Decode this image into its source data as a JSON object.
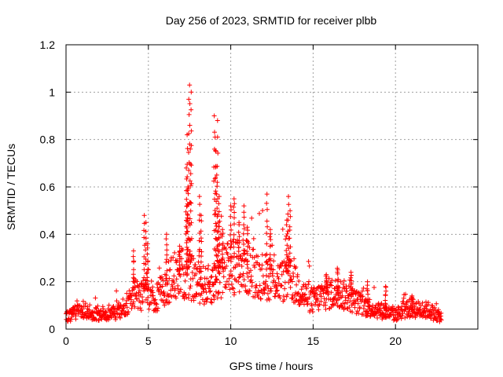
{
  "chart_data": {
    "type": "scatter",
    "title": "Day 256 of 2023, SRMTID for receiver plbb",
    "xlabel": "GPS time / hours",
    "ylabel": "SRMTID / TECUs",
    "xlim": [
      0,
      25
    ],
    "ylim": [
      0,
      1.2
    ],
    "grid": true,
    "marker": "+",
    "marker_color": "#ff0000",
    "x_ticks": [
      0,
      5,
      10,
      15,
      20
    ],
    "x_tick_labels": [
      "0",
      "5",
      "10",
      "15",
      "20"
    ],
    "y_ticks": [
      0,
      0.2,
      0.4,
      0.6,
      0.8,
      1.0,
      1.2
    ],
    "y_tick_labels": [
      "0",
      "0.2",
      "0.4",
      "0.6",
      "0.8",
      "1",
      "1.2"
    ],
    "series": [
      {
        "name": "SRMTID",
        "profile": [
          [
            0.0,
            0.05
          ],
          [
            0.5,
            0.07
          ],
          [
            1.0,
            0.08
          ],
          [
            1.5,
            0.07
          ],
          [
            2.0,
            0.06
          ],
          [
            2.5,
            0.06
          ],
          [
            3.0,
            0.07
          ],
          [
            3.5,
            0.09
          ],
          [
            3.9,
            0.12
          ],
          [
            4.2,
            0.16
          ],
          [
            4.6,
            0.14
          ],
          [
            5.0,
            0.15
          ],
          [
            5.5,
            0.13
          ],
          [
            6.0,
            0.18
          ],
          [
            6.5,
            0.22
          ],
          [
            7.0,
            0.24
          ],
          [
            7.5,
            0.22
          ],
          [
            8.0,
            0.2
          ],
          [
            8.5,
            0.18
          ],
          [
            9.0,
            0.2
          ],
          [
            9.5,
            0.24
          ],
          [
            10.0,
            0.26
          ],
          [
            10.5,
            0.27
          ],
          [
            11.0,
            0.26
          ],
          [
            11.5,
            0.24
          ],
          [
            12.0,
            0.22
          ],
          [
            12.5,
            0.22
          ],
          [
            13.0,
            0.2
          ],
          [
            13.5,
            0.21
          ],
          [
            14.0,
            0.18
          ],
          [
            14.5,
            0.14
          ],
          [
            15.0,
            0.12
          ],
          [
            15.5,
            0.14
          ],
          [
            16.0,
            0.15
          ],
          [
            16.5,
            0.15
          ],
          [
            17.0,
            0.14
          ],
          [
            17.5,
            0.12
          ],
          [
            18.0,
            0.1
          ],
          [
            18.5,
            0.09
          ],
          [
            19.0,
            0.08
          ],
          [
            19.5,
            0.07
          ],
          [
            20.0,
            0.06
          ],
          [
            20.5,
            0.08
          ],
          [
            21.0,
            0.09
          ],
          [
            21.5,
            0.08
          ],
          [
            22.0,
            0.08
          ],
          [
            22.5,
            0.06
          ],
          [
            22.8,
            0.05
          ]
        ],
        "spikes": [
          {
            "x": 4.1,
            "y": 0.33
          },
          {
            "x": 4.75,
            "y": 0.48
          },
          {
            "x": 4.85,
            "y": 0.45
          },
          {
            "x": 4.95,
            "y": 0.36
          },
          {
            "x": 6.1,
            "y": 0.4
          },
          {
            "x": 6.9,
            "y": 0.35
          },
          {
            "x": 7.3,
            "y": 0.68
          },
          {
            "x": 7.35,
            "y": 0.82
          },
          {
            "x": 7.45,
            "y": 0.97
          },
          {
            "x": 7.5,
            "y": 1.03
          },
          {
            "x": 7.6,
            "y": 1.0
          },
          {
            "x": 7.55,
            "y": 0.76
          },
          {
            "x": 7.4,
            "y": 0.6
          },
          {
            "x": 7.35,
            "y": 0.52
          },
          {
            "x": 8.1,
            "y": 0.56
          },
          {
            "x": 8.2,
            "y": 0.48
          },
          {
            "x": 9.0,
            "y": 0.9
          },
          {
            "x": 9.05,
            "y": 0.81
          },
          {
            "x": 9.2,
            "y": 0.88
          },
          {
            "x": 9.1,
            "y": 0.75
          },
          {
            "x": 9.15,
            "y": 0.65
          },
          {
            "x": 9.3,
            "y": 0.56
          },
          {
            "x": 9.25,
            "y": 0.45
          },
          {
            "x": 9.5,
            "y": 0.42
          },
          {
            "x": 10.0,
            "y": 0.52
          },
          {
            "x": 10.2,
            "y": 0.55
          },
          {
            "x": 10.5,
            "y": 0.45
          },
          {
            "x": 10.8,
            "y": 0.52
          },
          {
            "x": 11.0,
            "y": 0.43
          },
          {
            "x": 12.2,
            "y": 0.57
          },
          {
            "x": 12.4,
            "y": 0.42
          },
          {
            "x": 13.5,
            "y": 0.56
          },
          {
            "x": 13.6,
            "y": 0.5
          },
          {
            "x": 13.4,
            "y": 0.46
          },
          {
            "x": 15.8,
            "y": 0.23
          },
          {
            "x": 16.5,
            "y": 0.25
          },
          {
            "x": 17.3,
            "y": 0.24
          },
          {
            "x": 18.3,
            "y": 0.2
          },
          {
            "x": 19.4,
            "y": 0.18
          },
          {
            "x": 21.0,
            "y": 0.14
          }
        ]
      }
    ]
  }
}
